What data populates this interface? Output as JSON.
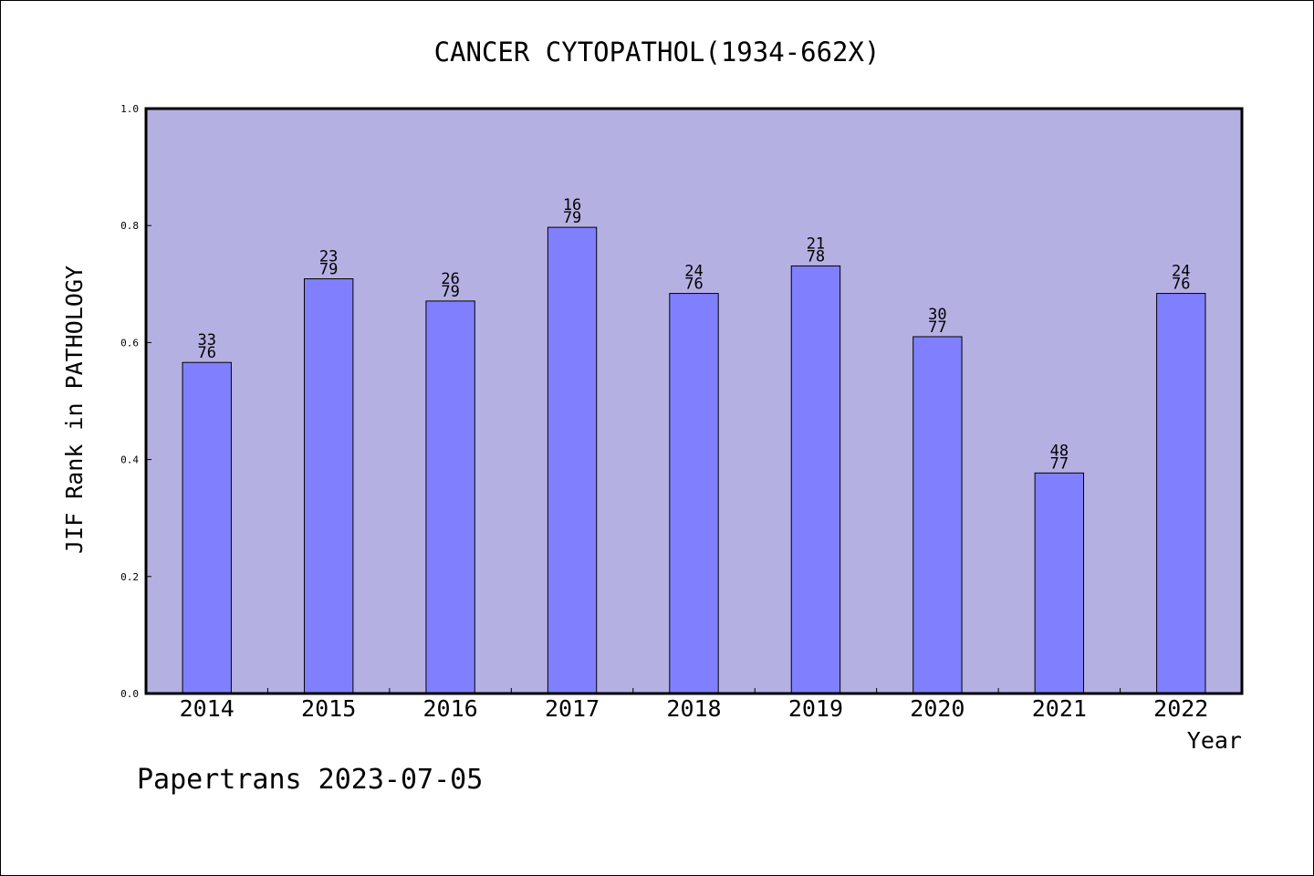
{
  "chart_data": {
    "type": "bar",
    "title": "CANCER CYTOPATHOL(1934-662X)",
    "xlabel": "Year",
    "ylabel": "JIF Rank in PATHOLOGY",
    "ylim": [
      0,
      1.0
    ],
    "yticks": [
      "0.0",
      "0.2",
      "0.4",
      "0.6",
      "0.8",
      "1.0"
    ],
    "grid": false,
    "legend": "none",
    "categories": [
      "2014",
      "2015",
      "2016",
      "2017",
      "2018",
      "2019",
      "2020",
      "2021",
      "2022"
    ],
    "values": [
      0.566,
      0.709,
      0.671,
      0.797,
      0.684,
      0.731,
      0.61,
      0.377,
      0.684
    ],
    "labels": [
      {
        "rank": "33",
        "total": "76"
      },
      {
        "rank": "23",
        "total": "79"
      },
      {
        "rank": "26",
        "total": "79"
      },
      {
        "rank": "16",
        "total": "79"
      },
      {
        "rank": "24",
        "total": "76"
      },
      {
        "rank": "21",
        "total": "78"
      },
      {
        "rank": "30",
        "total": "77"
      },
      {
        "rank": "48",
        "total": "77"
      },
      {
        "rank": "24",
        "total": "76"
      }
    ],
    "colors": {
      "plot_bg": "#b5b0e2",
      "bar": "#8080ff",
      "axis": "#000000"
    }
  },
  "footer": {
    "text": "Papertrans 2023-07-05"
  }
}
